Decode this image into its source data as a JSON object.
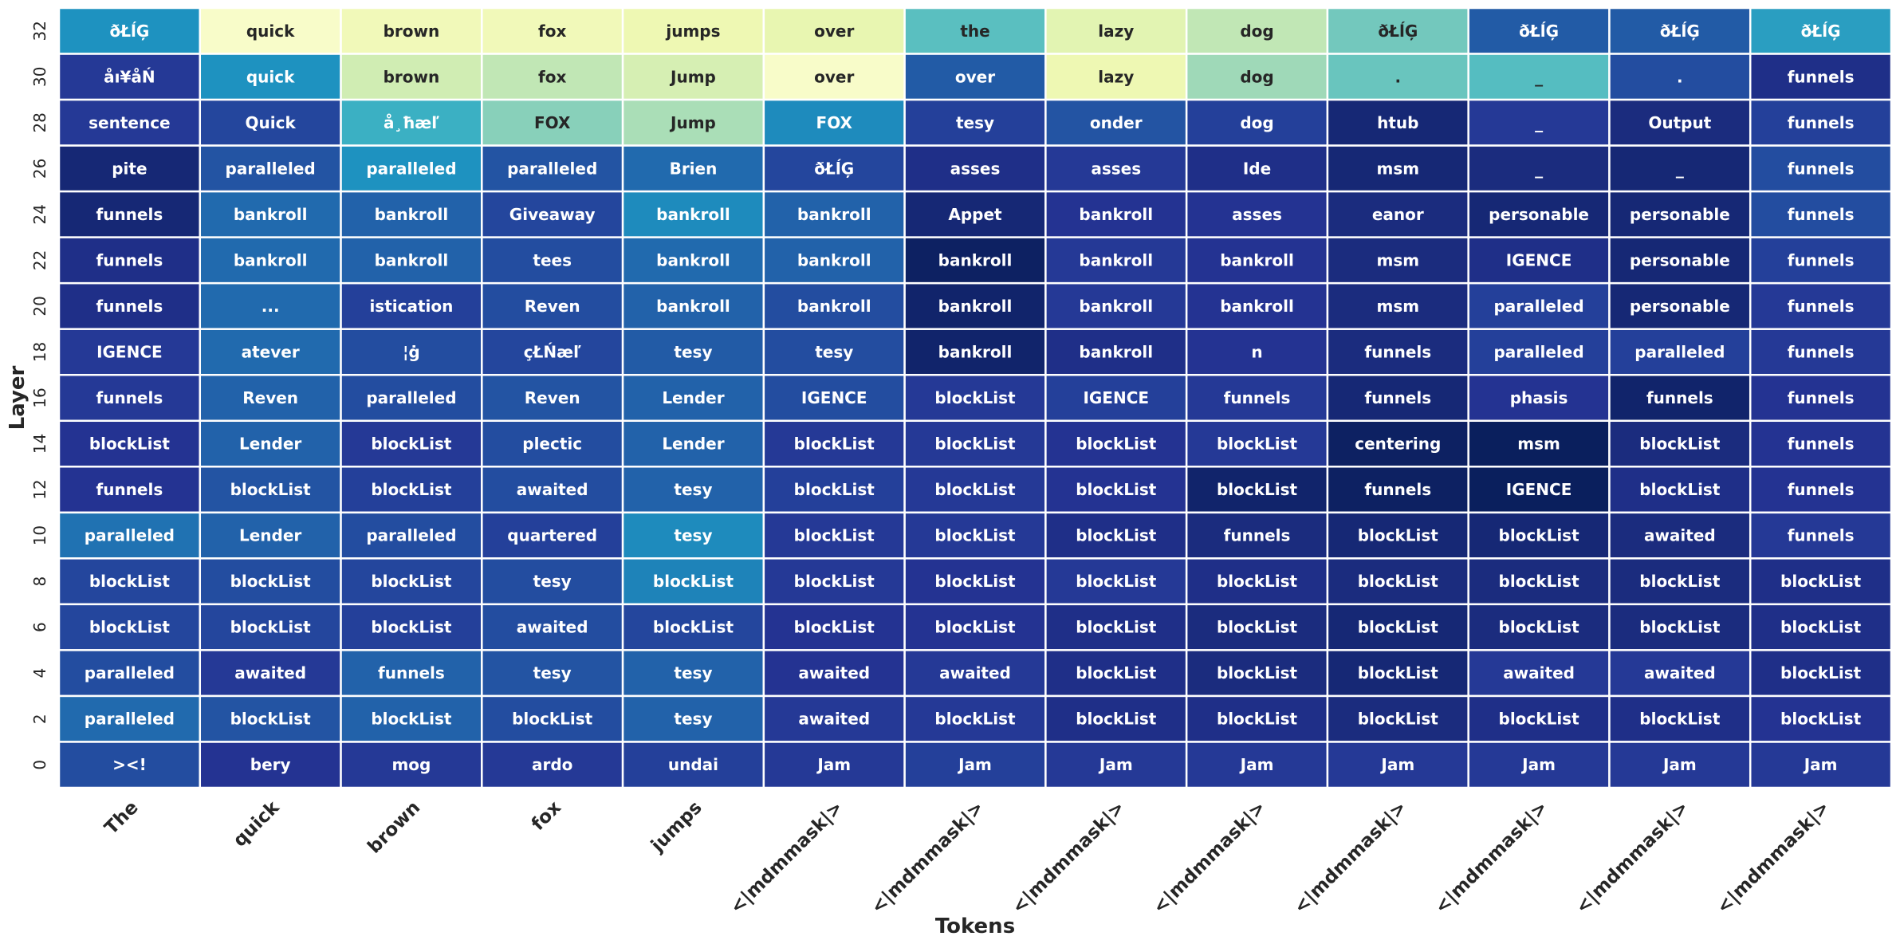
{
  "chart_data": {
    "type": "heatmap",
    "title": "",
    "xlabel": "Tokens",
    "ylabel": "Layer",
    "colormap": "YlGnBu",
    "value_range": [
      0,
      1
    ],
    "x_categories": [
      "The",
      "quick",
      "brown",
      "fox",
      "jumps",
      "<|mdmmask|>",
      "<|mdmmask|>",
      "<|mdmmask|>",
      "<|mdmmask|>",
      "<|mdmmask|>",
      "<|mdmmask|>",
      "<|mdmmask|>",
      "<|mdmmask|>"
    ],
    "y_categories": [
      "32",
      "30",
      "28",
      "26",
      "24",
      "22",
      "20",
      "18",
      "16",
      "14",
      "12",
      "10",
      "8",
      "6",
      "4",
      "2",
      "0"
    ],
    "cell_labels": [
      [
        "ðŁĺĢ",
        "quick",
        "brown",
        "fox",
        "jumps",
        "over",
        "the",
        "lazy",
        "dog",
        "ðŁĺĢ",
        "ðŁĺĢ",
        "ðŁĺĢ",
        "ðŁĺĢ"
      ],
      [
        "åı¥åŃ",
        "quick",
        "brown",
        "fox",
        "Jump",
        "over",
        "over",
        "lazy",
        "dog",
        ".",
        "_",
        ".",
        "funnels"
      ],
      [
        "sentence",
        "Quick",
        "å¸ħæľ",
        "FOX",
        "Jump",
        "FOX",
        "tesy",
        "onder",
        "dog",
        "htub",
        "_",
        "Output",
        "funnels"
      ],
      [
        "pite",
        "paralleled",
        "paralleled",
        "paralleled",
        "Brien",
        "ðŁĺĢ",
        "asses",
        "asses",
        "Ide",
        "msm",
        "_",
        "_",
        "funnels"
      ],
      [
        "funnels",
        "bankroll",
        "bankroll",
        "Giveaway",
        "bankroll",
        "bankroll",
        "Appet",
        "bankroll",
        "asses",
        "eanor",
        "personable",
        "personable",
        "funnels"
      ],
      [
        "funnels",
        "bankroll",
        "bankroll",
        "tees",
        "bankroll",
        "bankroll",
        "bankroll",
        "bankroll",
        "bankroll",
        "msm",
        "IGENCE",
        "personable",
        "funnels"
      ],
      [
        "funnels",
        "...",
        "istication",
        "Reven",
        "bankroll",
        "bankroll",
        "bankroll",
        "bankroll",
        "bankroll",
        "msm",
        "paralleled",
        "personable",
        "funnels"
      ],
      [
        "IGENCE",
        "atever",
        "¦ġ",
        "çŁŃæľ",
        "tesy",
        "tesy",
        "bankroll",
        "bankroll",
        "n",
        "funnels",
        "paralleled",
        "paralleled",
        "funnels"
      ],
      [
        "funnels",
        "Reven",
        "paralleled",
        "Reven",
        "Lender",
        "IGENCE",
        "blockList",
        "IGENCE",
        "funnels",
        "funnels",
        "phasis",
        "funnels",
        "funnels"
      ],
      [
        "blockList",
        "Lender",
        "blockList",
        "plectic",
        "Lender",
        "blockList",
        "blockList",
        "blockList",
        "blockList",
        "centering",
        "msm",
        "blockList",
        "funnels"
      ],
      [
        "funnels",
        "blockList",
        "blockList",
        "awaited",
        "tesy",
        "blockList",
        "blockList",
        "blockList",
        "blockList",
        "funnels",
        "IGENCE",
        "blockList",
        "funnels"
      ],
      [
        "paralleled",
        "Lender",
        "paralleled",
        "quartered",
        "tesy",
        "blockList",
        "blockList",
        "blockList",
        "funnels",
        "blockList",
        "blockList",
        "awaited",
        "funnels"
      ],
      [
        "blockList",
        "blockList",
        "blockList",
        "tesy",
        "blockList",
        "blockList",
        "blockList",
        "blockList",
        "blockList",
        "blockList",
        "blockList",
        "blockList",
        "blockList"
      ],
      [
        "blockList",
        "blockList",
        "blockList",
        "awaited",
        "blockList",
        "blockList",
        "blockList",
        "blockList",
        "blockList",
        "blockList",
        "blockList",
        "blockList",
        "blockList"
      ],
      [
        "paralleled",
        "awaited",
        "funnels",
        "tesy",
        "tesy",
        "awaited",
        "awaited",
        "blockList",
        "blockList",
        "blockList",
        "awaited",
        "awaited",
        "blockList"
      ],
      [
        "paralleled",
        "blockList",
        "blockList",
        "blockList",
        "tesy",
        "awaited",
        "blockList",
        "blockList",
        "blockList",
        "blockList",
        "blockList",
        "blockList",
        "blockList"
      ],
      [
        "><!",
        "bery",
        "mog",
        "ardo",
        "undai",
        "Jam",
        "Jam",
        "Jam",
        "Jam",
        "Jam",
        "Jam",
        "Jam",
        "Jam"
      ]
    ],
    "values": [
      [
        0.62,
        0.05,
        0.1,
        0.1,
        0.12,
        0.14,
        0.45,
        0.16,
        0.26,
        0.4,
        0.76,
        0.76,
        0.58
      ],
      [
        0.86,
        0.62,
        0.22,
        0.26,
        0.2,
        0.05,
        0.76,
        0.12,
        0.32,
        0.42,
        0.46,
        0.8,
        0.9
      ],
      [
        0.86,
        0.82,
        0.52,
        0.36,
        0.3,
        0.64,
        0.84,
        0.78,
        0.84,
        0.94,
        0.86,
        0.92,
        0.84
      ],
      [
        0.94,
        0.78,
        0.62,
        0.78,
        0.72,
        0.82,
        0.9,
        0.86,
        0.9,
        0.94,
        0.92,
        0.94,
        0.8
      ],
      [
        0.94,
        0.72,
        0.74,
        0.82,
        0.64,
        0.74,
        0.94,
        0.88,
        0.88,
        0.92,
        0.94,
        0.94,
        0.8
      ],
      [
        0.9,
        0.72,
        0.74,
        0.8,
        0.72,
        0.74,
        0.98,
        0.86,
        0.88,
        0.92,
        0.9,
        0.94,
        0.84
      ],
      [
        0.9,
        0.72,
        0.84,
        0.8,
        0.74,
        0.8,
        0.96,
        0.86,
        0.88,
        0.92,
        0.84,
        0.94,
        0.86
      ],
      [
        0.86,
        0.72,
        0.8,
        0.82,
        0.76,
        0.8,
        0.96,
        0.9,
        0.88,
        0.92,
        0.84,
        0.84,
        0.86
      ],
      [
        0.86,
        0.74,
        0.8,
        0.78,
        0.74,
        0.8,
        0.86,
        0.84,
        0.86,
        0.94,
        0.88,
        0.96,
        0.88
      ],
      [
        0.88,
        0.74,
        0.86,
        0.8,
        0.74,
        0.86,
        0.86,
        0.88,
        0.86,
        0.98,
        0.99,
        0.92,
        0.88
      ],
      [
        0.88,
        0.78,
        0.84,
        0.8,
        0.74,
        0.84,
        0.86,
        0.88,
        0.96,
        0.98,
        0.99,
        0.9,
        0.88
      ],
      [
        0.7,
        0.74,
        0.8,
        0.84,
        0.64,
        0.86,
        0.86,
        0.9,
        0.92,
        0.94,
        0.94,
        0.92,
        0.86
      ],
      [
        0.82,
        0.8,
        0.82,
        0.8,
        0.66,
        0.86,
        0.88,
        0.86,
        0.9,
        0.92,
        0.92,
        0.92,
        0.9
      ],
      [
        0.82,
        0.82,
        0.84,
        0.8,
        0.82,
        0.88,
        0.88,
        0.9,
        0.92,
        0.94,
        0.92,
        0.92,
        0.9
      ],
      [
        0.8,
        0.86,
        0.74,
        0.78,
        0.74,
        0.88,
        0.86,
        0.9,
        0.92,
        0.94,
        0.86,
        0.86,
        0.9
      ],
      [
        0.72,
        0.78,
        0.74,
        0.8,
        0.74,
        0.86,
        0.86,
        0.9,
        0.9,
        0.92,
        0.9,
        0.9,
        0.88
      ],
      [
        0.8,
        0.88,
        0.86,
        0.86,
        0.84,
        0.86,
        0.84,
        0.86,
        0.86,
        0.86,
        0.86,
        0.86,
        0.86
      ]
    ]
  }
}
